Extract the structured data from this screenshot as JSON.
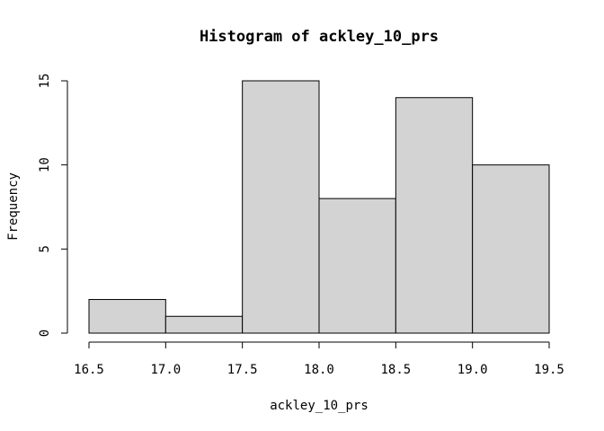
{
  "chart_data": {
    "type": "bar",
    "title": "Histogram of ackley_10_prs",
    "xlabel": "ackley_10_prs",
    "ylabel": "Frequency",
    "bins": [
      {
        "from": 16.5,
        "to": 17.0,
        "count": 2
      },
      {
        "from": 17.0,
        "to": 17.5,
        "count": 1
      },
      {
        "from": 17.5,
        "to": 18.0,
        "count": 15
      },
      {
        "from": 18.0,
        "to": 18.5,
        "count": 8
      },
      {
        "from": 18.5,
        "to": 19.0,
        "count": 14
      },
      {
        "from": 19.0,
        "to": 19.5,
        "count": 10
      }
    ],
    "xlim": [
      16.5,
      19.5
    ],
    "ylim": [
      0,
      15
    ],
    "x_ticks": [
      "16.5",
      "17.0",
      "17.5",
      "18.0",
      "18.5",
      "19.0",
      "19.5"
    ],
    "y_ticks": [
      "0",
      "5",
      "10",
      "15"
    ],
    "bar_color": "#d3d3d3",
    "grid": false
  }
}
